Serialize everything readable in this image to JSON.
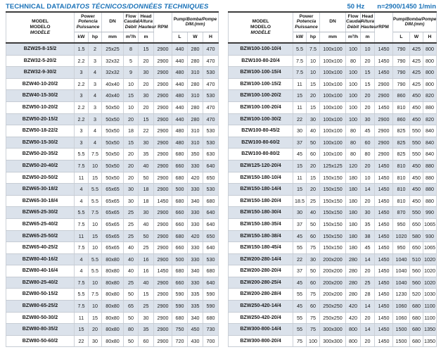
{
  "page": {
    "title_en": "TECHNICAL DATA/",
    "title_intl": "DATOS TÉCNICOS/DONNÉES TECHNIQUES",
    "frequency": "50 Hz",
    "speed": "n=2900/1450 1/min"
  },
  "colors": {
    "accent_blue": "#1a72b8",
    "row_shade": "#dbe2eb"
  },
  "header": {
    "model": [
      "MODEL",
      "MODELO",
      "MODÈLE"
    ],
    "power": [
      "Power",
      "Potencia",
      "Puissance"
    ],
    "kw": "kW",
    "hp": "hp",
    "dn": "DN",
    "dn_unit": "mm",
    "flow": [
      "Flow",
      "Caudal",
      "Débit"
    ],
    "flow_unit": "m³/h",
    "head": [
      "Head",
      "Altura",
      "Hauteur"
    ],
    "head_unit": "m",
    "rpm": "RPM",
    "dim_en": "Pump/",
    "dim_intl": "Bomba/Pompe",
    "dim_line2": "DIM.(mm)",
    "dim_l": "L",
    "dim_w": "W",
    "dim_h": "H"
  },
  "tables": {
    "left": {
      "rows": [
        [
          "BZW25-8-15/2",
          "1.5",
          "2",
          "25x25",
          "8",
          "15",
          "2900",
          "440",
          "280",
          "470"
        ],
        [
          "BZW32-5-20/2",
          "2.2",
          "3",
          "32x32",
          "5",
          "20",
          "2900",
          "440",
          "280",
          "470"
        ],
        [
          "BZW32-9-30/2",
          "3",
          "4",
          "32x32",
          "9",
          "30",
          "2900",
          "480",
          "310",
          "530"
        ],
        [
          "BZW40-10-20/2",
          "2.2",
          "3",
          "40x40",
          "10",
          "20",
          "2900",
          "440",
          "280",
          "470"
        ],
        [
          "BZW40-15-30/2",
          "3",
          "4",
          "40x40",
          "15",
          "30",
          "2900",
          "480",
          "310",
          "530"
        ],
        [
          "BZW50-10-20/2",
          "2.2",
          "3",
          "50x50",
          "10",
          "20",
          "2900",
          "440",
          "280",
          "470"
        ],
        [
          "BZW50-20-15/2",
          "2.2",
          "3",
          "50x50",
          "20",
          "15",
          "2900",
          "440",
          "280",
          "470"
        ],
        [
          "BZW50-18-22/2",
          "3",
          "4",
          "50x50",
          "18",
          "22",
          "2900",
          "480",
          "310",
          "530"
        ],
        [
          "BZW50-15-30/2",
          "3",
          "4",
          "50x50",
          "15",
          "30",
          "2900",
          "480",
          "310",
          "530"
        ],
        [
          "BZW50-20-35/2",
          "5.5",
          "7.5",
          "50x50",
          "20",
          "35",
          "2900",
          "680",
          "350",
          "630"
        ],
        [
          "BZW50-20-40/2",
          "7.5",
          "10",
          "50x50",
          "20",
          "40",
          "2900",
          "660",
          "330",
          "640"
        ],
        [
          "BZW50-20-50/2",
          "11",
          "15",
          "50x50",
          "20",
          "50",
          "2900",
          "680",
          "420",
          "650"
        ],
        [
          "BZW65-30-18/2",
          "4",
          "5.5",
          "65x65",
          "30",
          "18",
          "2900",
          "500",
          "330",
          "530"
        ],
        [
          "BZW65-30-18/4",
          "4",
          "5.5",
          "65x65",
          "30",
          "18",
          "1450",
          "680",
          "340",
          "680"
        ],
        [
          "BZW65-25-30/2",
          "5.5",
          "7.5",
          "65x65",
          "25",
          "30",
          "2900",
          "660",
          "330",
          "640"
        ],
        [
          "BZW65-25-40/2",
          "7.5",
          "10",
          "65x65",
          "25",
          "40",
          "2900",
          "660",
          "330",
          "640"
        ],
        [
          "BZW65-25-50/2",
          "11",
          "15",
          "65x65",
          "25",
          "50",
          "2900",
          "680",
          "420",
          "650"
        ],
        [
          "BZW65-40-25/2",
          "7.5",
          "10",
          "65x65",
          "40",
          "25",
          "2900",
          "660",
          "330",
          "640"
        ],
        [
          "BZW80-40-16/2",
          "4",
          "5.5",
          "80x80",
          "40",
          "16",
          "2900",
          "500",
          "330",
          "530"
        ],
        [
          "BZW80-40-16/4",
          "4",
          "5.5",
          "80x80",
          "40",
          "16",
          "1450",
          "680",
          "340",
          "680"
        ],
        [
          "BZW80-25-40/2",
          "7.5",
          "10",
          "80x80",
          "25",
          "40",
          "2900",
          "660",
          "330",
          "640"
        ],
        [
          "BZW80-50-15/2",
          "5.5",
          "7.5",
          "80x80",
          "50",
          "15",
          "2900",
          "590",
          "335",
          "590"
        ],
        [
          "BZW80-65-25/2",
          "7.5",
          "10",
          "80x80",
          "65",
          "25",
          "2900",
          "590",
          "335",
          "590"
        ],
        [
          "BZW80-50-30/2",
          "11",
          "15",
          "80x80",
          "50",
          "30",
          "2900",
          "680",
          "340",
          "680"
        ],
        [
          "BZW80-80-35/2",
          "15",
          "20",
          "80x80",
          "80",
          "35",
          "2900",
          "750",
          "450",
          "730"
        ],
        [
          "BZW80-50-60/2",
          "22",
          "30",
          "80x80",
          "50",
          "60",
          "2900",
          "720",
          "430",
          "700"
        ]
      ]
    },
    "right": {
      "rows": [
        [
          "BZW100-100-10/4",
          "5.5",
          "7.5",
          "100x100",
          "100",
          "10",
          "1450",
          "790",
          "425",
          "800"
        ],
        [
          "BZW100-80-20/4",
          "7.5",
          "10",
          "100x100",
          "80",
          "20",
          "1450",
          "790",
          "425",
          "800"
        ],
        [
          "BZW100-100-15/4",
          "7.5",
          "10",
          "100x100",
          "100",
          "15",
          "1450",
          "790",
          "425",
          "800"
        ],
        [
          "BZW100-100-15/2",
          "11",
          "15",
          "100x100",
          "100",
          "15",
          "2900",
          "790",
          "425",
          "800"
        ],
        [
          "BZW100-100-20/2",
          "15",
          "20",
          "100x100",
          "100",
          "20",
          "2900",
          "860",
          "450",
          "820"
        ],
        [
          "BZW100-100-20/4",
          "11",
          "15",
          "100x100",
          "100",
          "20",
          "1450",
          "810",
          "450",
          "880"
        ],
        [
          "BZW100-100-30/2",
          "22",
          "30",
          "100x100",
          "100",
          "30",
          "2900",
          "860",
          "450",
          "820"
        ],
        [
          "BZW100-80-45/2",
          "30",
          "40",
          "100x100",
          "80",
          "45",
          "2900",
          "825",
          "550",
          "840"
        ],
        [
          "BZW100-80-60/2",
          "37",
          "50",
          "100x100",
          "80",
          "60",
          "2900",
          "825",
          "550",
          "840"
        ],
        [
          "BZW100-80-80/2",
          "45",
          "60",
          "100x100",
          "80",
          "80",
          "2900",
          "825",
          "550",
          "840"
        ],
        [
          "BZW125-120-20/4",
          "15",
          "20",
          "125x125",
          "120",
          "20",
          "1450",
          "810",
          "450",
          "880"
        ],
        [
          "BZW150-180-10/4",
          "11",
          "15",
          "150x150",
          "180",
          "10",
          "1450",
          "810",
          "450",
          "880"
        ],
        [
          "BZW150-180-14/4",
          "15",
          "20",
          "150x150",
          "180",
          "14",
          "1450",
          "810",
          "450",
          "880"
        ],
        [
          "BZW150-180-20/4",
          "18.5",
          "25",
          "150x150",
          "180",
          "20",
          "1450",
          "810",
          "450",
          "880"
        ],
        [
          "BZW150-180-30/4",
          "30",
          "40",
          "150x150",
          "180",
          "30",
          "1450",
          "870",
          "550",
          "990"
        ],
        [
          "BZW150-180-35/4",
          "37",
          "50",
          "150x150",
          "180",
          "35",
          "1450",
          "950",
          "650",
          "1065"
        ],
        [
          "BZW150-180-38/4",
          "45",
          "60",
          "150x150",
          "180",
          "38",
          "1450",
          "1020",
          "580",
          "930"
        ],
        [
          "BZW150-180-45/4",
          "55",
          "75",
          "150x150",
          "180",
          "45",
          "1450",
          "950",
          "650",
          "1065"
        ],
        [
          "BZW200-280-14/4",
          "22",
          "30",
          "200x200",
          "280",
          "14",
          "1450",
          "1040",
          "510",
          "1020"
        ],
        [
          "BZW200-280-20/4",
          "37",
          "50",
          "200x200",
          "280",
          "20",
          "1450",
          "1040",
          "560",
          "1020"
        ],
        [
          "BZW200-280-25/4",
          "45",
          "60",
          "200x200",
          "280",
          "25",
          "1450",
          "1040",
          "560",
          "1020"
        ],
        [
          "BZW200-280-28/4",
          "55",
          "75",
          "200x200",
          "280",
          "28",
          "1450",
          "1230",
          "520",
          "1030"
        ],
        [
          "BZW250-420-14/4",
          "45",
          "60",
          "250x250",
          "420",
          "14",
          "1450",
          "1060",
          "680",
          "1100"
        ],
        [
          "BZW250-420-20/4",
          "55",
          "75",
          "250x250",
          "420",
          "20",
          "1450",
          "1060",
          "680",
          "1100"
        ],
        [
          "BZW300-800-14/4",
          "55",
          "75",
          "300x300",
          "800",
          "14",
          "1450",
          "1500",
          "680",
          "1350"
        ],
        [
          "BZW300-800-20/4",
          "75",
          "100",
          "300x300",
          "800",
          "20",
          "1450",
          "1500",
          "680",
          "1350"
        ]
      ]
    }
  }
}
